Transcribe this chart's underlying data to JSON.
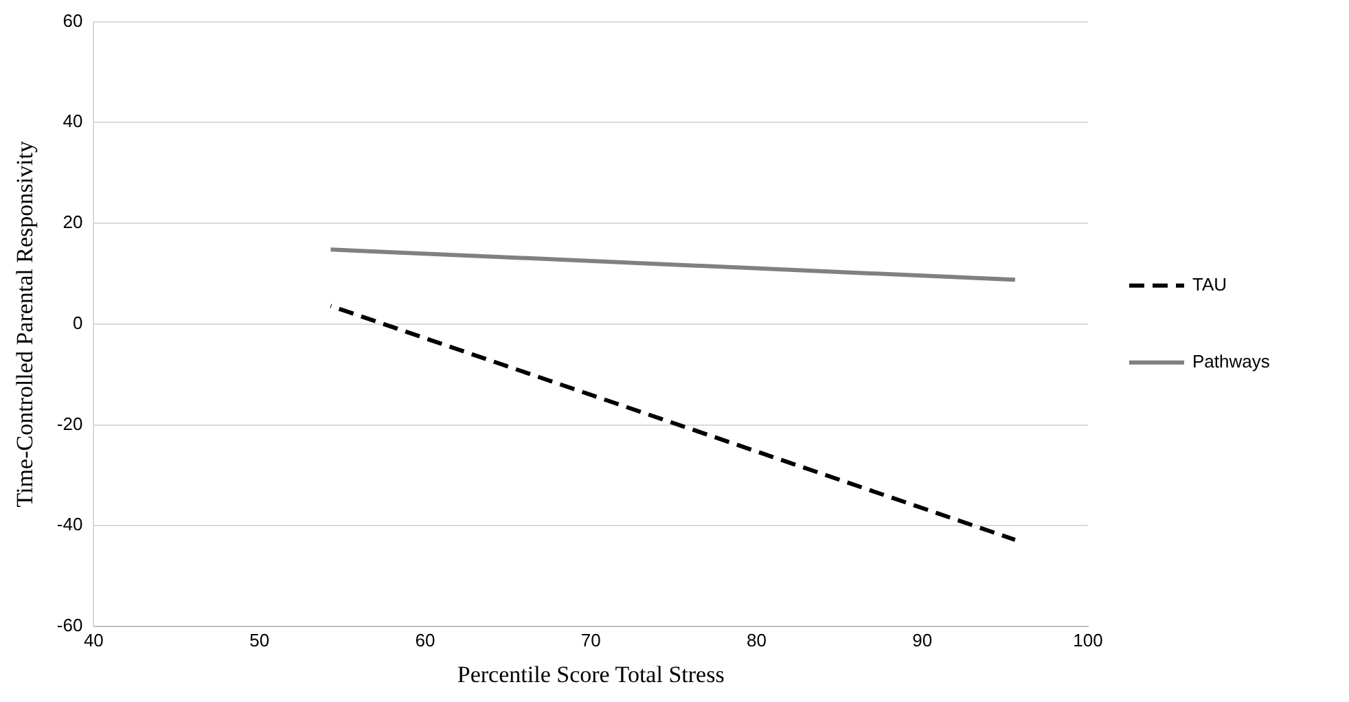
{
  "chart_data": {
    "type": "line",
    "xlabel": "Percentile Score Total Stress",
    "ylabel": "Time-Controlled Parental Responsivity",
    "xlim": [
      40,
      100
    ],
    "xticks": [
      40,
      50,
      60,
      70,
      80,
      90,
      100
    ],
    "ylim": [
      -60,
      60
    ],
    "yticks": [
      -60,
      -40,
      -20,
      0,
      20,
      40,
      60
    ],
    "grid": "y",
    "legend": "right",
    "marker": "none",
    "x": [
      54.3,
      95.6
    ],
    "series": [
      {
        "name": "TAU",
        "color": "#000000",
        "line_style": "dashed",
        "values": [
          3.6,
          -42.8
        ]
      },
      {
        "name": "Pathways",
        "color": "#808080",
        "line_style": "solid",
        "values": [
          14.8,
          8.8
        ]
      }
    ]
  }
}
